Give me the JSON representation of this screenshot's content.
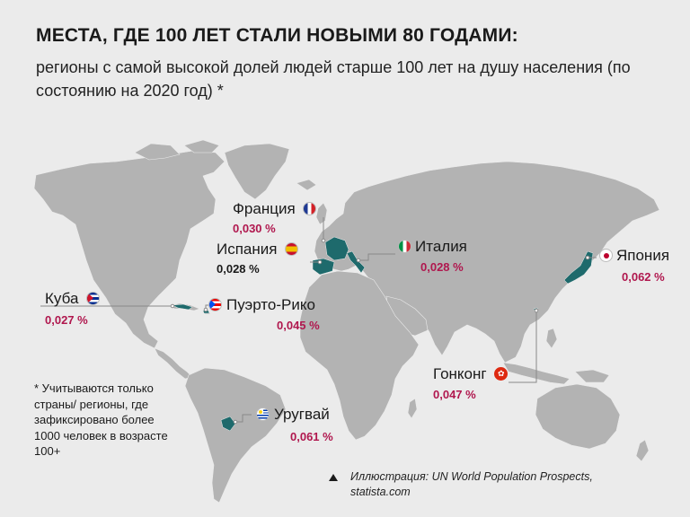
{
  "title": "МЕСТА, ГДЕ 100 ЛЕТ СТАЛИ НОВЫМИ 80 ГОДАМИ:",
  "subtitle": "регионы с самой высокой долей людей старше 100 лет на душу населения (по состоянию на 2020 год) *",
  "colors": {
    "background": "#ebebeb",
    "land": "#b3b3b3",
    "highlight": "#1e6a6c",
    "value": "#b0174e",
    "line": "#8a8a8a"
  },
  "regions": [
    {
      "id": "france",
      "name": "Франция",
      "value": "0,030 %",
      "flag_icon": "france-flag-icon"
    },
    {
      "id": "spain",
      "name": "Испания",
      "value": "0,028 %",
      "flag_icon": "spain-flag-icon"
    },
    {
      "id": "italy",
      "name": "Италия",
      "value": "0,028 %",
      "flag_icon": "italy-flag-icon"
    },
    {
      "id": "japan",
      "name": "Япония",
      "value": "0,062 %",
      "flag_icon": "japan-flag-icon"
    },
    {
      "id": "cuba",
      "name": "Куба",
      "value": "0,027 %",
      "flag_icon": "cuba-flag-icon"
    },
    {
      "id": "puerto_rico",
      "name": "Пуэрто-Рико",
      "value": "0,045 %",
      "flag_icon": "puerto-rico-flag-icon"
    },
    {
      "id": "hong_kong",
      "name": "Гонконг",
      "value": "0,047 %",
      "flag_icon": "hong-kong-flag-icon"
    },
    {
      "id": "uruguay",
      "name": "Уругвай",
      "value": "0,061 %",
      "flag_icon": "uruguay-flag-icon"
    }
  ],
  "footnote": "* Учитываются только страны/ регионы, где зафиксировано более 1000 человек в возрасте 100+",
  "credit": "Иллюстрация: UN World Population Prospects, statista.com"
}
